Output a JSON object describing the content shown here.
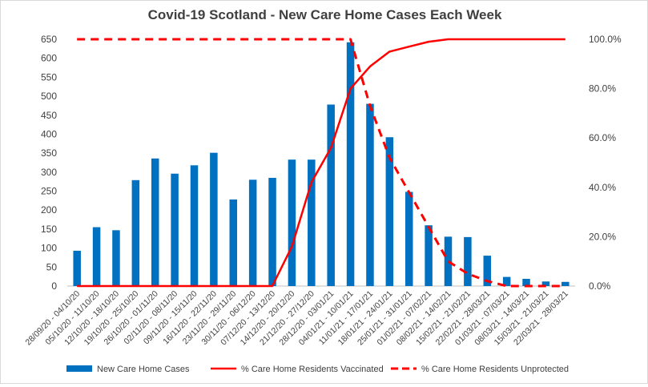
{
  "chart_data": {
    "type": "bar",
    "title": "Covid-19 Scotland - New Care Home Cases Each Week",
    "categories": [
      "28/09/20 - 04/10/20",
      "05/10/20 - 11/10/20",
      "12/10/20 - 18/10/20",
      "19/10/20 - 25/10/20",
      "26/10/20 - 01/11/20",
      "02/11/20 - 08/11/20",
      "09/11/20 - 15/11/20",
      "16/11/20 - 22/11/20",
      "23/11/20 - 29/11/20",
      "30/11/20 - 06/12/20",
      "07/12/20 - 13/12/20",
      "14/12/20 - 20/12/20",
      "21/12/20 - 27/12/20",
      "28/12/20 - 03/01/21",
      "04/01/21 - 10/01/21",
      "11/01/21 - 17/01/21",
      "18/01/21 - 24/01/21",
      "25/01/21 - 31/01/21",
      "01/02/21 - 07/02/21",
      "08/02/21 - 14/02/21",
      "15/02/21 - 21/02/21",
      "22/02/21 - 28/03/21",
      "01/03/21 - 07/03/21",
      "08/03/21 - 14/03/21",
      "15/03/21 - 21/03/21",
      "22/03/21 - 28/03/21"
    ],
    "series": [
      {
        "name": "New Care Home Cases",
        "type": "bar",
        "axis": "left",
        "color": "#0070c0",
        "values": [
          93,
          155,
          147,
          279,
          336,
          296,
          318,
          351,
          228,
          280,
          285,
          333,
          333,
          478,
          642,
          480,
          392,
          248,
          160,
          130,
          129,
          80,
          24,
          19,
          12,
          11
        ]
      },
      {
        "name": "% Care Home Residents Vaccinated",
        "type": "line",
        "axis": "right",
        "color": "#ff0000",
        "dash": "solid",
        "values": [
          0,
          0,
          0,
          0,
          0,
          0,
          0,
          0,
          0,
          0,
          0,
          16,
          42,
          56,
          80,
          89,
          95,
          97,
          99,
          100,
          100,
          100,
          100,
          100,
          100,
          100
        ]
      },
      {
        "name": "% Care Home Residents Unprotected",
        "type": "line",
        "axis": "right",
        "color": "#ff0000",
        "dash": "dashed",
        "values": [
          100,
          100,
          100,
          100,
          100,
          100,
          100,
          100,
          100,
          100,
          100,
          100,
          100,
          100,
          100,
          73,
          52,
          38,
          24,
          10,
          5,
          2,
          0,
          0,
          0,
          0
        ]
      }
    ],
    "y_left": {
      "min": 0,
      "max": 650,
      "step": 50,
      "ticks": [
        "0",
        "50",
        "100",
        "150",
        "200",
        "250",
        "300",
        "350",
        "400",
        "450",
        "500",
        "550",
        "600",
        "650"
      ]
    },
    "y_right": {
      "min": 0,
      "max": 100,
      "ticks": [
        "0.0%",
        "20.0%",
        "40.0%",
        "60.0%",
        "80.0%",
        "100.0%"
      ]
    },
    "xlabel": "",
    "ylabel": "",
    "grid": false,
    "legend_position": "bottom"
  }
}
